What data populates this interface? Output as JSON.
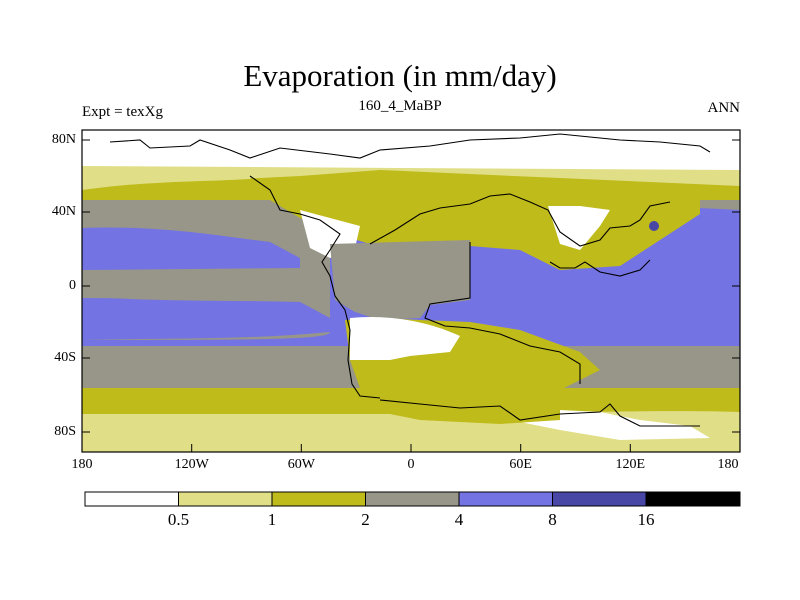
{
  "title": "Evaporation (in mm/day)",
  "left_label": "Expt = texXg",
  "center_label": "160_4_MaBP",
  "right_label": "ANN",
  "lat_ticks": [
    "80N",
    "40N",
    "0",
    "40S",
    "80S"
  ],
  "lon_ticks": [
    "180",
    "120W",
    "60W",
    "0",
    "60E",
    "120E",
    "180"
  ],
  "colorbar": {
    "levels": [
      "0.5",
      "1",
      "2",
      "4",
      "8",
      "16"
    ],
    "colors": [
      "#ffffff",
      "#e0df88",
      "#bfbb1b",
      "#979688",
      "#7473e4",
      "#4847a6",
      "#000000"
    ]
  },
  "colors": {
    "c0": "#ffffff",
    "c1": "#e0df88",
    "c2": "#bfbb1b",
    "c3": "#979688",
    "c4": "#7473e4",
    "c5": "#4847a6",
    "c6": "#000000"
  }
}
